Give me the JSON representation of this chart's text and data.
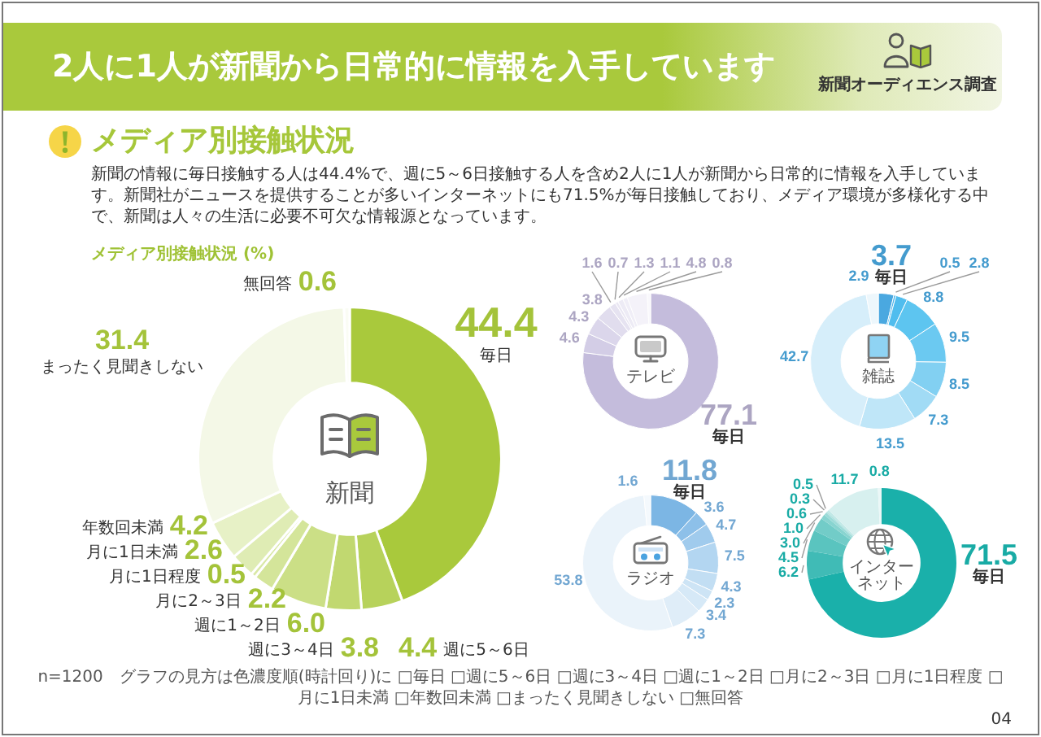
{
  "chart_data": [
    {
      "type": "other",
      "title": "2人に1人が新聞から日常的に情報を入手しています",
      "subtitle": "メディア別接触状況",
      "annotations": [
        "新聞オーディエンス調査",
        "新聞の情報に毎日接触する人は44.4%で、週に5～6日接触する人を含め2人に1人が新聞から日常的に情報を入手しています。新聞社がニュースを提供することが多いインターネットにも71.5%が毎日接触しており、メディア環境が多様化する中で、新聞は人々の生活に必要不可欠な情報源となっています。",
        "メディア別接触状況 (%)",
        "n=1200　グラフの見方は色濃度順(時計回り)に □毎日 □週に5～6日 □週に3～4日 □週に1～2日 □月に2～3日 □月に1日程度 □月に1日未満 □年数回未満 □まったく見聞きしない □無回答",
        "04"
      ]
    },
    {
      "type": "donut",
      "title": "新聞",
      "categories": [
        "毎日",
        "週に5～6日",
        "週に3～4日",
        "週に1～2日",
        "月に2～3日",
        "月に1日程度",
        "月に1日未満",
        "年数回未満",
        "まったく見聞きしない",
        "無回答"
      ],
      "values": [
        44.4,
        4.4,
        3.8,
        6.0,
        2.2,
        0.5,
        2.6,
        4.2,
        31.4,
        0.6
      ],
      "value_labels": [
        "44.4",
        "4.4",
        "3.8",
        "6.0",
        "2.2",
        "0.5",
        "2.6",
        "4.2",
        "31.4",
        "0.6"
      ],
      "colors": [
        "#a9c93c",
        "#b7d25b",
        "#c1d870",
        "#cbdf86",
        "#d4e59a",
        "#d9e8a6",
        "#dfecb4",
        "#e7f1c6",
        "#f4f8e7",
        "#fafcf4"
      ]
    },
    {
      "type": "donut",
      "title": "テレビ",
      "categories": [
        "毎日",
        null,
        null,
        null,
        null,
        null,
        null,
        null,
        null,
        null
      ],
      "values": [
        77.1,
        4.6,
        4.3,
        3.8,
        1.6,
        0.7,
        1.3,
        1.1,
        4.8,
        0.8
      ],
      "value_labels": [
        "77.1",
        "4.6",
        "4.3",
        "3.8",
        "1.6",
        "0.7",
        "1.3",
        "1.1",
        "4.8",
        "0.8"
      ],
      "colors": [
        "#c4bcdc",
        "#d3cde6",
        "#dbd6eb",
        "#e1ddee",
        "#e6e3f1",
        "#eae7f3",
        "#edebf5",
        "#f0eef7",
        "#f4f2f9",
        "#f9f8fc"
      ]
    },
    {
      "type": "donut",
      "title": "雑誌",
      "categories": [
        "毎日",
        null,
        null,
        null,
        null,
        null,
        null,
        null,
        null,
        null
      ],
      "values": [
        3.7,
        0.5,
        2.8,
        8.8,
        9.5,
        8.5,
        7.3,
        13.5,
        42.7,
        2.9
      ],
      "value_labels": [
        "3.7",
        "0.5",
        "2.8",
        "8.8",
        "9.5",
        "8.5",
        "7.3",
        "13.5",
        "42.7",
        "2.9"
      ],
      "colors": [
        "#4aa8e0",
        "#4db5e9",
        "#50bdee",
        "#5dc5f0",
        "#6bc9f1",
        "#82d0f2",
        "#a1dbf5",
        "#bfe6f8",
        "#d6eefa",
        "#edf7fc"
      ]
    },
    {
      "type": "donut",
      "title": "ラジオ",
      "categories": [
        "毎日",
        null,
        null,
        null,
        null,
        null,
        null,
        null,
        null,
        null
      ],
      "values": [
        11.8,
        3.6,
        4.7,
        7.5,
        4.3,
        2.3,
        3.4,
        7.3,
        53.8,
        1.6
      ],
      "value_labels": [
        "11.8",
        "3.6",
        "4.7",
        "7.5",
        "4.3",
        "2.3",
        "3.4",
        "7.3",
        "53.8",
        "1.6"
      ],
      "colors": [
        "#7cb6e4",
        "#8dc0e9",
        "#a0cbed",
        "#b3d6f1",
        "#c2def3",
        "#cde4f5",
        "#d6e9f7",
        "#dfedf8",
        "#eaf3fa",
        "#f4f9fd"
      ]
    },
    {
      "type": "donut",
      "title": "インターネット",
      "categories": [
        "毎日",
        null,
        null,
        null,
        null,
        null,
        null,
        null,
        null,
        null
      ],
      "values": [
        71.5,
        6.2,
        4.5,
        3.0,
        1.0,
        0.6,
        0.3,
        0.5,
        11.7,
        0.8
      ],
      "value_labels": [
        "71.5",
        "6.2",
        "4.5",
        "3.0",
        "1.0",
        "0.6",
        "0.3",
        "0.5",
        "11.7",
        "0.8"
      ],
      "colors": [
        "#1ab0aa",
        "#40bbb6",
        "#5ac4bf",
        "#72ccc8",
        "#88d4d0",
        "#9cdbd8",
        "#aee1df",
        "#c0e8e6",
        "#d7f0ef",
        "#ebf7f7"
      ]
    }
  ]
}
